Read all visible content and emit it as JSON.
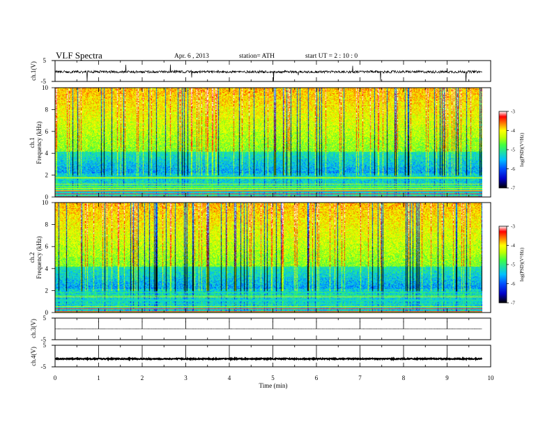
{
  "header": {
    "title": "VLF  Spectra",
    "date": "Apr. 6  , 2013",
    "station": "station= ATH",
    "start": "start  UT  =   2  : 10 : 0"
  },
  "colors": {
    "colormap": [
      "#000000",
      "#0000c8",
      "#0050ff",
      "#00c0ff",
      "#20e0a0",
      "#40ff40",
      "#c0ff00",
      "#ffff00",
      "#ff8000",
      "#ff0000",
      "#ffffff"
    ],
    "waveform": "#000000",
    "axes": "#000000"
  },
  "chart_data": [
    {
      "id": "ch1_waveform",
      "type": "line",
      "ylabel": "ch.1(V)",
      "ylim": [
        -5,
        5
      ],
      "yticks": [
        "5",
        "-5"
      ],
      "xlim": [
        0,
        10
      ],
      "x_extent": 9.8,
      "description_value": "noisy waveform near -0.5 V with frequent spikes"
    },
    {
      "id": "ch1_spectrogram",
      "type": "heatmap",
      "ylabel": "Frequency  (kHz)",
      "channel_label": "ch.1",
      "ylim": [
        0,
        10
      ],
      "yticks": [
        "0",
        "2",
        "4",
        "6",
        "8",
        "10"
      ],
      "xlim": [
        0,
        10
      ],
      "x_extent": 9.8,
      "colorbar": {
        "label": "log(PSD)(V²/Hz)",
        "range": [
          -7,
          -3
        ],
        "ticks": [
          "-3",
          "-4",
          "-5",
          "-6",
          "-7"
        ]
      }
    },
    {
      "id": "ch2_spectrogram",
      "type": "heatmap",
      "ylabel": "Frequency  (kHz)",
      "channel_label": "ch.2",
      "ylim": [
        0,
        10
      ],
      "yticks": [
        "0",
        "2",
        "4",
        "6",
        "8",
        "10"
      ],
      "xlim": [
        0,
        10
      ],
      "x_extent": 9.8,
      "colorbar": {
        "label": "log(PSD)(V²/Hz)",
        "range": [
          -7,
          -3
        ],
        "ticks": [
          "-3",
          "-4",
          "-5",
          "-6",
          "-7"
        ]
      }
    },
    {
      "id": "ch3_waveform",
      "type": "line",
      "ylabel": "ch.3(V)",
      "ylim": [
        -5,
        5
      ],
      "yticks": [
        "5",
        "-5"
      ],
      "xlim": [
        0,
        10
      ],
      "x_extent": 9.8,
      "description_value": "flat line near 0 V with small spikes each minute"
    },
    {
      "id": "ch4_waveform",
      "type": "line",
      "ylabel": "ch.4(V)",
      "ylim": [
        -5,
        5
      ],
      "yticks": [
        "5",
        "-5"
      ],
      "xlim": [
        0,
        10
      ],
      "x_extent": 9.8,
      "description_value": "thick flat trace near -1.5 V with spikes each minute"
    }
  ],
  "xaxis": {
    "label": "Time  (min)",
    "ticks": [
      "0",
      "1",
      "2",
      "3",
      "4",
      "5",
      "6",
      "7",
      "8",
      "9",
      "10"
    ]
  }
}
